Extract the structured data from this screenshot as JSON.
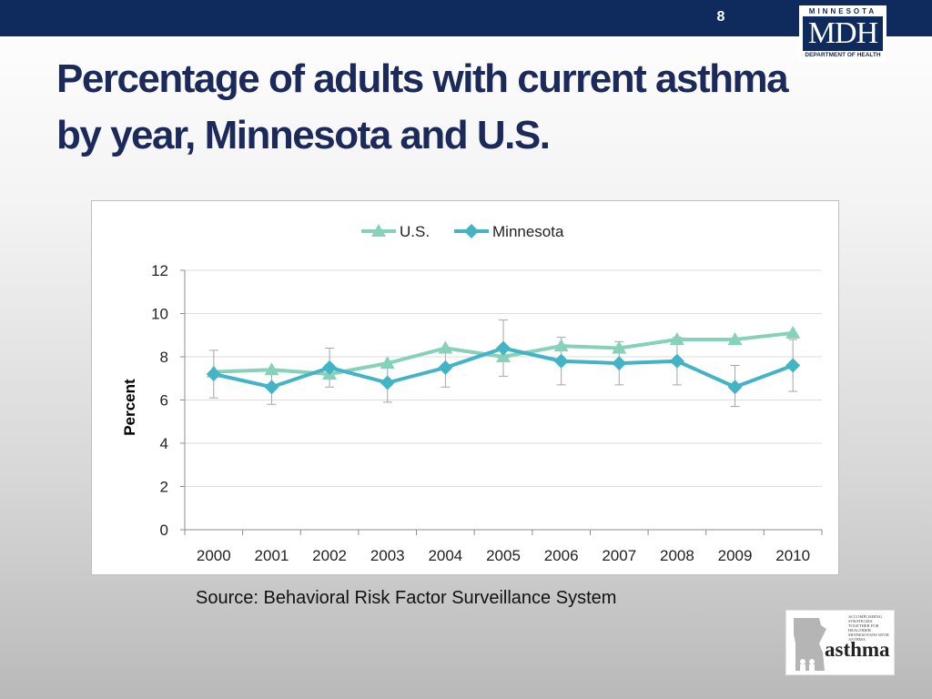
{
  "slide": {
    "number": "8",
    "title": "Percentage of adults with current asthma by year, Minnesota and U.S.",
    "source": "Source: Behavioral Risk Factor Surveillance System"
  },
  "logos": {
    "mdh": {
      "top": "MINNESOTA",
      "main": "MDH",
      "bottom": "DEPARTMENT OF HEALTH",
      "color": "#0f2a5c"
    },
    "asthma": {
      "word": "asthma",
      "lines": [
        "ACCOMPLISHING",
        "STRATEGIES",
        "TOGETHER FOR",
        "HEALTHIER",
        "MINNESOTANS WITH",
        "ASTHMA"
      ]
    }
  },
  "chart_data": {
    "type": "line",
    "title": "",
    "xlabel": "",
    "ylabel": "Percent",
    "ylim": [
      0,
      12
    ],
    "yticks": [
      0,
      2,
      4,
      6,
      8,
      10,
      12
    ],
    "categories": [
      "2000",
      "2001",
      "2002",
      "2003",
      "2004",
      "2005",
      "2006",
      "2007",
      "2008",
      "2009",
      "2010"
    ],
    "grid": "horizontal",
    "legend_position": "top",
    "series": [
      {
        "name": "U.S.",
        "marker": "triangle",
        "color": "#86d2b8",
        "values": [
          7.3,
          7.4,
          7.2,
          7.7,
          8.4,
          8.0,
          8.5,
          8.4,
          8.8,
          8.8,
          9.1
        ]
      },
      {
        "name": "Minnesota",
        "marker": "diamond",
        "color": "#43b3c6",
        "values": [
          7.2,
          6.6,
          7.5,
          6.8,
          7.5,
          8.4,
          7.8,
          7.7,
          7.8,
          6.6,
          7.6
        ],
        "error_low": [
          6.1,
          5.8,
          6.6,
          5.9,
          6.6,
          7.1,
          6.7,
          6.7,
          6.7,
          5.7,
          6.4
        ],
        "error_high": [
          8.3,
          7.4,
          8.4,
          7.7,
          8.4,
          9.7,
          8.9,
          8.7,
          8.9,
          7.6,
          8.8
        ],
        "error_color": "#a6a6a6"
      }
    ]
  }
}
